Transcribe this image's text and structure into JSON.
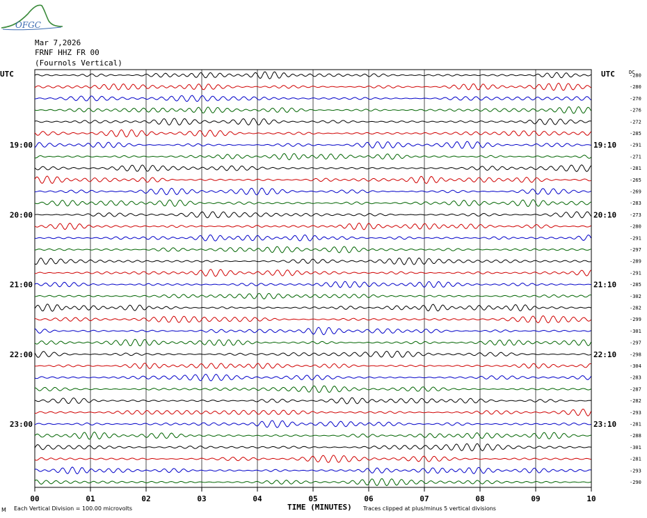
{
  "header": {
    "logo_text": "OFGC",
    "date": "Mar 7,2026",
    "station": "FRNF HHZ FR 00",
    "location": "(Fournols Vertical)"
  },
  "labels": {
    "utc_left": "UTC",
    "utc_right": "UTC",
    "dc_title": "DC",
    "x_title": "TIME (MINUTES)",
    "footer_left": "Each Vertical Division =  100.00 microvolts",
    "footer_right": "Traces clipped at plus/minus 5 vertical divisions",
    "corner_mark": "M"
  },
  "colors": {
    "trace_cycle": [
      "#000000",
      "#d00000",
      "#0000c8",
      "#006400"
    ],
    "grid": "#000000"
  },
  "chart_data": {
    "type": "line",
    "title": "",
    "xlabel": "TIME (MINUTES)",
    "ylabel": "",
    "xlim": [
      0,
      10
    ],
    "x_ticks": [
      "00",
      "01",
      "02",
      "03",
      "04",
      "05",
      "06",
      "07",
      "08",
      "09",
      "10"
    ],
    "trace_count": 36,
    "minutes_per_trace": 10,
    "left_hour_labels": [
      {
        "trace": 6,
        "text": "19:00"
      },
      {
        "trace": 12,
        "text": "20:00"
      },
      {
        "trace": 18,
        "text": "21:00"
      },
      {
        "trace": 24,
        "text": "22:00"
      },
      {
        "trace": 30,
        "text": "23:00"
      }
    ],
    "right_hour_labels": [
      {
        "trace": 6,
        "text": "19:10"
      },
      {
        "trace": 12,
        "text": "20:10"
      },
      {
        "trace": 18,
        "text": "21:10"
      },
      {
        "trace": 24,
        "text": "22:10"
      },
      {
        "trace": 30,
        "text": "23:10"
      }
    ],
    "dc_offsets": [
      "-280",
      "-280",
      "-270",
      "-276",
      "-272",
      "-285",
      "-291",
      "-271",
      "-281",
      "-265",
      "-269",
      "-283",
      "-273",
      "-280",
      "-291",
      "-297",
      "-289",
      "-291",
      "-285",
      "-302",
      "-282",
      "-299",
      "-301",
      "-297",
      "-298",
      "-304",
      "-283",
      "-287",
      "-282",
      "-293",
      "-281",
      "-288",
      "-301",
      "-281",
      "-293",
      "-290"
    ],
    "units": "microvolts",
    "vertical_division": 100.0,
    "clip_divisions": 5
  }
}
